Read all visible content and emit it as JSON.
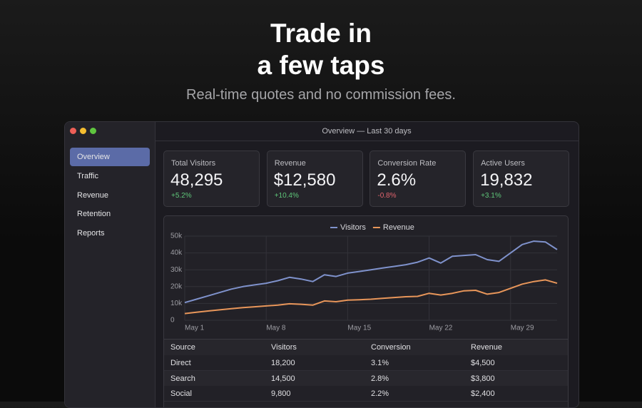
{
  "header": {
    "title_lines": [
      "Trade in",
      "a few taps"
    ],
    "subtitle": "Real-time quotes and no commission fees."
  },
  "window": {
    "title": "Overview — Last 30 days"
  },
  "sidebar": {
    "items": [
      "Overview",
      "Traffic",
      "Revenue",
      "Retention",
      "Reports"
    ],
    "active": 0
  },
  "kpis": [
    {
      "label": "Total Visitors",
      "value": "48,295",
      "delta": "+5.2%"
    },
    {
      "label": "Revenue",
      "value": "$12,580",
      "delta": "+10.4%"
    },
    {
      "label": "Conversion Rate",
      "value": "2.6%",
      "delta": "-0.8%"
    },
    {
      "label": "Active Users",
      "value": "19,832",
      "delta": "+3.1%"
    }
  ],
  "chart": {
    "type": "line",
    "categories": [
      "May 1",
      null,
      null,
      null,
      null,
      null,
      null,
      "May 8",
      null,
      null,
      null,
      null,
      null,
      null,
      "May 15",
      null,
      null,
      null,
      null,
      null,
      null,
      "May 22",
      null,
      null,
      null,
      null,
      null,
      null,
      "May 29",
      null,
      null,
      null,
      null
    ],
    "series": [
      {
        "name": "Visitors",
        "color": "#7f92cc",
        "values": [
          10500,
          12500,
          14500,
          16500,
          18500,
          20000,
          21000,
          22000,
          23500,
          25500,
          24500,
          23000,
          27000,
          26000,
          28000,
          29000,
          30000,
          31000,
          32000,
          33000,
          34500,
          37000,
          34000,
          38000,
          38500,
          39000,
          36000,
          35000,
          40000,
          45000,
          47000,
          46500,
          42000
        ]
      },
      {
        "name": "Revenue",
        "color": "#e8965a",
        "values": [
          4000,
          4800,
          5500,
          6200,
          6900,
          7500,
          8000,
          8500,
          9000,
          9800,
          9500,
          9000,
          11500,
          11000,
          12000,
          12200,
          12500,
          13000,
          13500,
          14000,
          14200,
          16000,
          15000,
          16000,
          17500,
          17800,
          15500,
          16500,
          19000,
          21500,
          23000,
          24000,
          22000
        ]
      }
    ],
    "ylim": [
      0,
      50000
    ],
    "yticks": [
      0,
      {
        "value": 10000,
        "label": "10k"
      },
      {
        "value": 20000,
        "label": "20k"
      },
      {
        "value": 30000,
        "label": "30k"
      },
      {
        "value": 40000,
        "label": "40k"
      },
      {
        "value": 50000,
        "label": "50k"
      }
    ],
    "grid": true,
    "legend": "top"
  },
  "table": {
    "columns": [
      "Source",
      "Visitors",
      "Conversion",
      "Revenue"
    ],
    "rows": [
      [
        "Direct",
        "18,200",
        "3.1%",
        "$4,500"
      ],
      [
        "Search",
        "14,500",
        "2.8%",
        "$3,800"
      ],
      [
        "Social",
        "9,800",
        "2.2%",
        "$2,400"
      ]
    ]
  }
}
